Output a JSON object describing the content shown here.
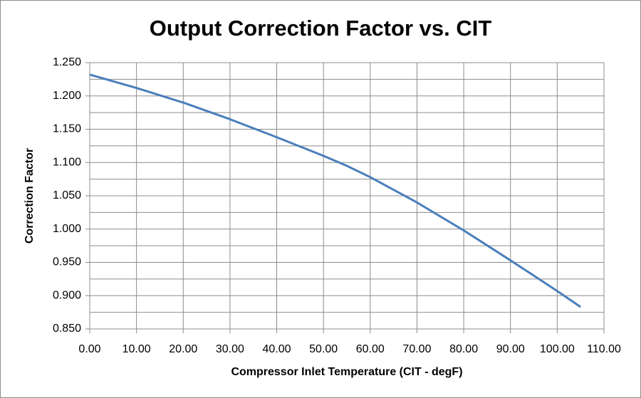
{
  "chart_data": {
    "type": "line",
    "title": "Output Correction Factor vs. CIT",
    "xlabel": "Compressor Inlet Temperature (CIT - degF)",
    "ylabel": "Correction Factor",
    "x": [
      0,
      10,
      20,
      30,
      40,
      50,
      55,
      60,
      70,
      80,
      90,
      100,
      105
    ],
    "series": [
      {
        "name": "Correction Factor",
        "color": "#4a7ebb",
        "values": [
          1.232,
          1.212,
          1.19,
          1.165,
          1.138,
          1.11,
          1.095,
          1.078,
          1.04,
          0.998,
          0.953,
          0.907,
          0.883
        ]
      }
    ],
    "xlim": [
      0,
      110
    ],
    "xticks": [
      {
        "value": 0,
        "label": "0.00"
      },
      {
        "value": 10,
        "label": "10.00"
      },
      {
        "value": 20,
        "label": "20.00"
      },
      {
        "value": 30,
        "label": "30.00"
      },
      {
        "value": 40,
        "label": "40.00"
      },
      {
        "value": 50,
        "label": "50.00"
      },
      {
        "value": 60,
        "label": "60.00"
      },
      {
        "value": 70,
        "label": "70.00"
      },
      {
        "value": 80,
        "label": "80.00"
      },
      {
        "value": 90,
        "label": "90.00"
      },
      {
        "value": 100,
        "label": "100.00"
      },
      {
        "value": 110,
        "label": "110.00"
      }
    ],
    "ylim": [
      0.85,
      1.25
    ],
    "yticks": [
      {
        "value": 0.85,
        "label": "0.850"
      },
      {
        "value": 0.9,
        "label": "0.900"
      },
      {
        "value": 0.95,
        "label": "0.950"
      },
      {
        "value": 1.0,
        "label": "1.000"
      },
      {
        "value": 1.05,
        "label": "1.050"
      },
      {
        "value": 1.1,
        "label": "1.100"
      },
      {
        "value": 1.15,
        "label": "1.150"
      },
      {
        "value": 1.2,
        "label": "1.200"
      },
      {
        "value": 1.25,
        "label": "1.250"
      }
    ],
    "yminorticks": [
      0.875,
      0.925,
      0.975,
      1.025,
      1.075,
      1.125,
      1.175,
      1.225
    ],
    "grid": true
  }
}
